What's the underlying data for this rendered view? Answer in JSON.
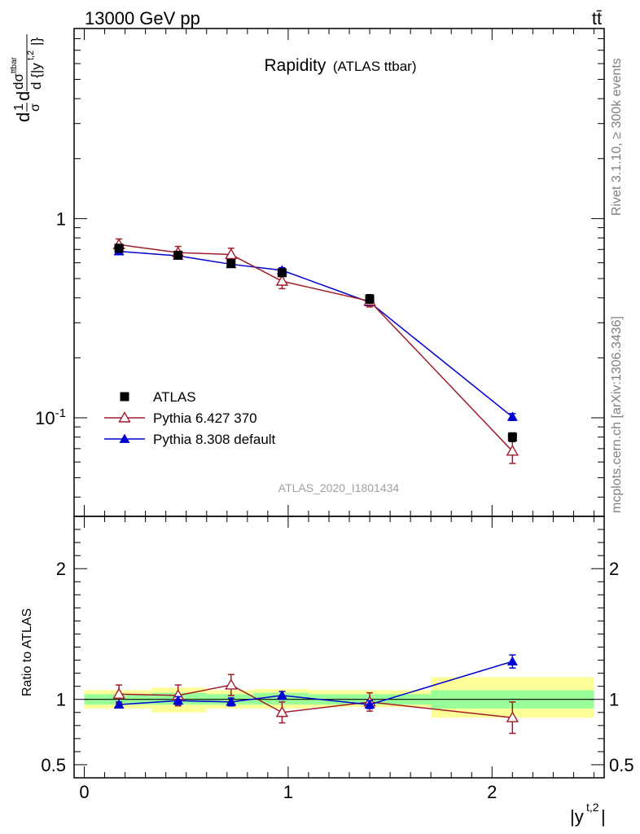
{
  "header": {
    "energy_label": "13000 GeV pp",
    "process_label": "tt̄"
  },
  "title": {
    "main": "Rapidity",
    "sub": "(ATLAS ttbar)"
  },
  "side_text": {
    "rivet": "Rivet 3.1.10, ≥ 300k events",
    "mcplots": "mcplots.cern.ch [arXiv:1306.3436]"
  },
  "analysis_id": "ATLAS_2020_I1801434",
  "y_label_top": "d{1}{σ}d{dσ^{ttbar}}{d {|y^{t,2}|}}",
  "y_label_ratio": "Ratio to ATLAS",
  "x_label": "|y^{t,2}|",
  "legend": [
    {
      "label": "ATLAS",
      "marker": "square",
      "color": "#000000"
    },
    {
      "label": "Pythia 6.427 370",
      "marker": "triangle-open",
      "color": "#a01c2c"
    },
    {
      "label": "Pythia 8.308 default",
      "marker": "triangle-filled",
      "color": "#0000d0"
    }
  ],
  "chart_data": [
    {
      "type": "line",
      "panel": "main",
      "yscale": "log",
      "xlim": [
        -0.05,
        2.55
      ],
      "ylim": [
        0.032,
        9
      ],
      "yticks": [
        {
          "v": 1,
          "label": "1"
        },
        {
          "v": 0.1,
          "label": "10^{-1}"
        }
      ],
      "series": [
        {
          "name": "ATLAS",
          "x": [
            0.17,
            0.46,
            0.72,
            0.97,
            1.4,
            2.1
          ],
          "y": [
            0.71,
            0.655,
            0.595,
            0.535,
            0.395,
            0.08
          ],
          "err": [
            0.03,
            0.025,
            0.022,
            0.02,
            0.02,
            0.004
          ]
        },
        {
          "name": "Pythia 6.427 370",
          "x": [
            0.17,
            0.46,
            0.72,
            0.97,
            1.4,
            2.1
          ],
          "y": [
            0.74,
            0.675,
            0.66,
            0.485,
            0.385,
            0.068
          ],
          "err": [
            0.05,
            0.05,
            0.05,
            0.04,
            0.025,
            0.009
          ]
        },
        {
          "name": "Pythia 8.308 default",
          "x": [
            0.17,
            0.46,
            0.72,
            0.97,
            1.4,
            2.1
          ],
          "y": [
            0.685,
            0.65,
            0.59,
            0.55,
            0.38,
            0.101
          ],
          "err": [
            0.02,
            0.02,
            0.018,
            0.017,
            0.012,
            0.004
          ]
        }
      ]
    },
    {
      "type": "line",
      "panel": "ratio",
      "ylim": [
        0.4,
        2.4
      ],
      "xticks": [
        {
          "v": 0,
          "label": "0"
        },
        {
          "v": 1,
          "label": "1"
        },
        {
          "v": 2,
          "label": "2"
        }
      ],
      "yticks": [
        {
          "v": 0.5,
          "label": "0.5"
        },
        {
          "v": 1,
          "label": "1"
        },
        {
          "v": 2,
          "label": "2"
        }
      ],
      "bands": [
        {
          "x0": 0.0,
          "x1": 0.33,
          "inner": [
            0.96,
            1.04
          ],
          "outer": [
            0.93,
            1.07
          ]
        },
        {
          "x0": 0.33,
          "x1": 0.6,
          "inner": [
            0.96,
            1.05
          ],
          "outer": [
            0.9,
            1.09
          ]
        },
        {
          "x0": 0.6,
          "x1": 0.83,
          "inner": [
            0.96,
            1.04
          ],
          "outer": [
            0.93,
            1.07
          ]
        },
        {
          "x0": 0.83,
          "x1": 1.1,
          "inner": [
            0.96,
            1.05
          ],
          "outer": [
            0.93,
            1.08
          ]
        },
        {
          "x0": 1.1,
          "x1": 1.7,
          "inner": [
            0.96,
            1.04
          ],
          "outer": [
            0.94,
            1.07
          ]
        },
        {
          "x0": 1.7,
          "x1": 2.5,
          "inner": [
            0.93,
            1.07
          ],
          "outer": [
            0.86,
            1.17
          ]
        }
      ],
      "series": [
        {
          "name": "Pythia 6.427 370",
          "x": [
            0.17,
            0.46,
            0.72,
            0.97,
            1.4,
            2.1
          ],
          "y": [
            1.04,
            1.03,
            1.11,
            0.9,
            0.98,
            0.86
          ],
          "err": [
            0.07,
            0.08,
            0.08,
            0.08,
            0.07,
            0.12
          ]
        },
        {
          "name": "Pythia 8.308 default",
          "x": [
            0.17,
            0.46,
            0.72,
            0.97,
            1.4,
            2.1
          ],
          "y": [
            0.96,
            0.99,
            0.98,
            1.03,
            0.96,
            1.29
          ],
          "err": [
            0.02,
            0.03,
            0.03,
            0.03,
            0.03,
            0.05
          ]
        }
      ]
    }
  ]
}
